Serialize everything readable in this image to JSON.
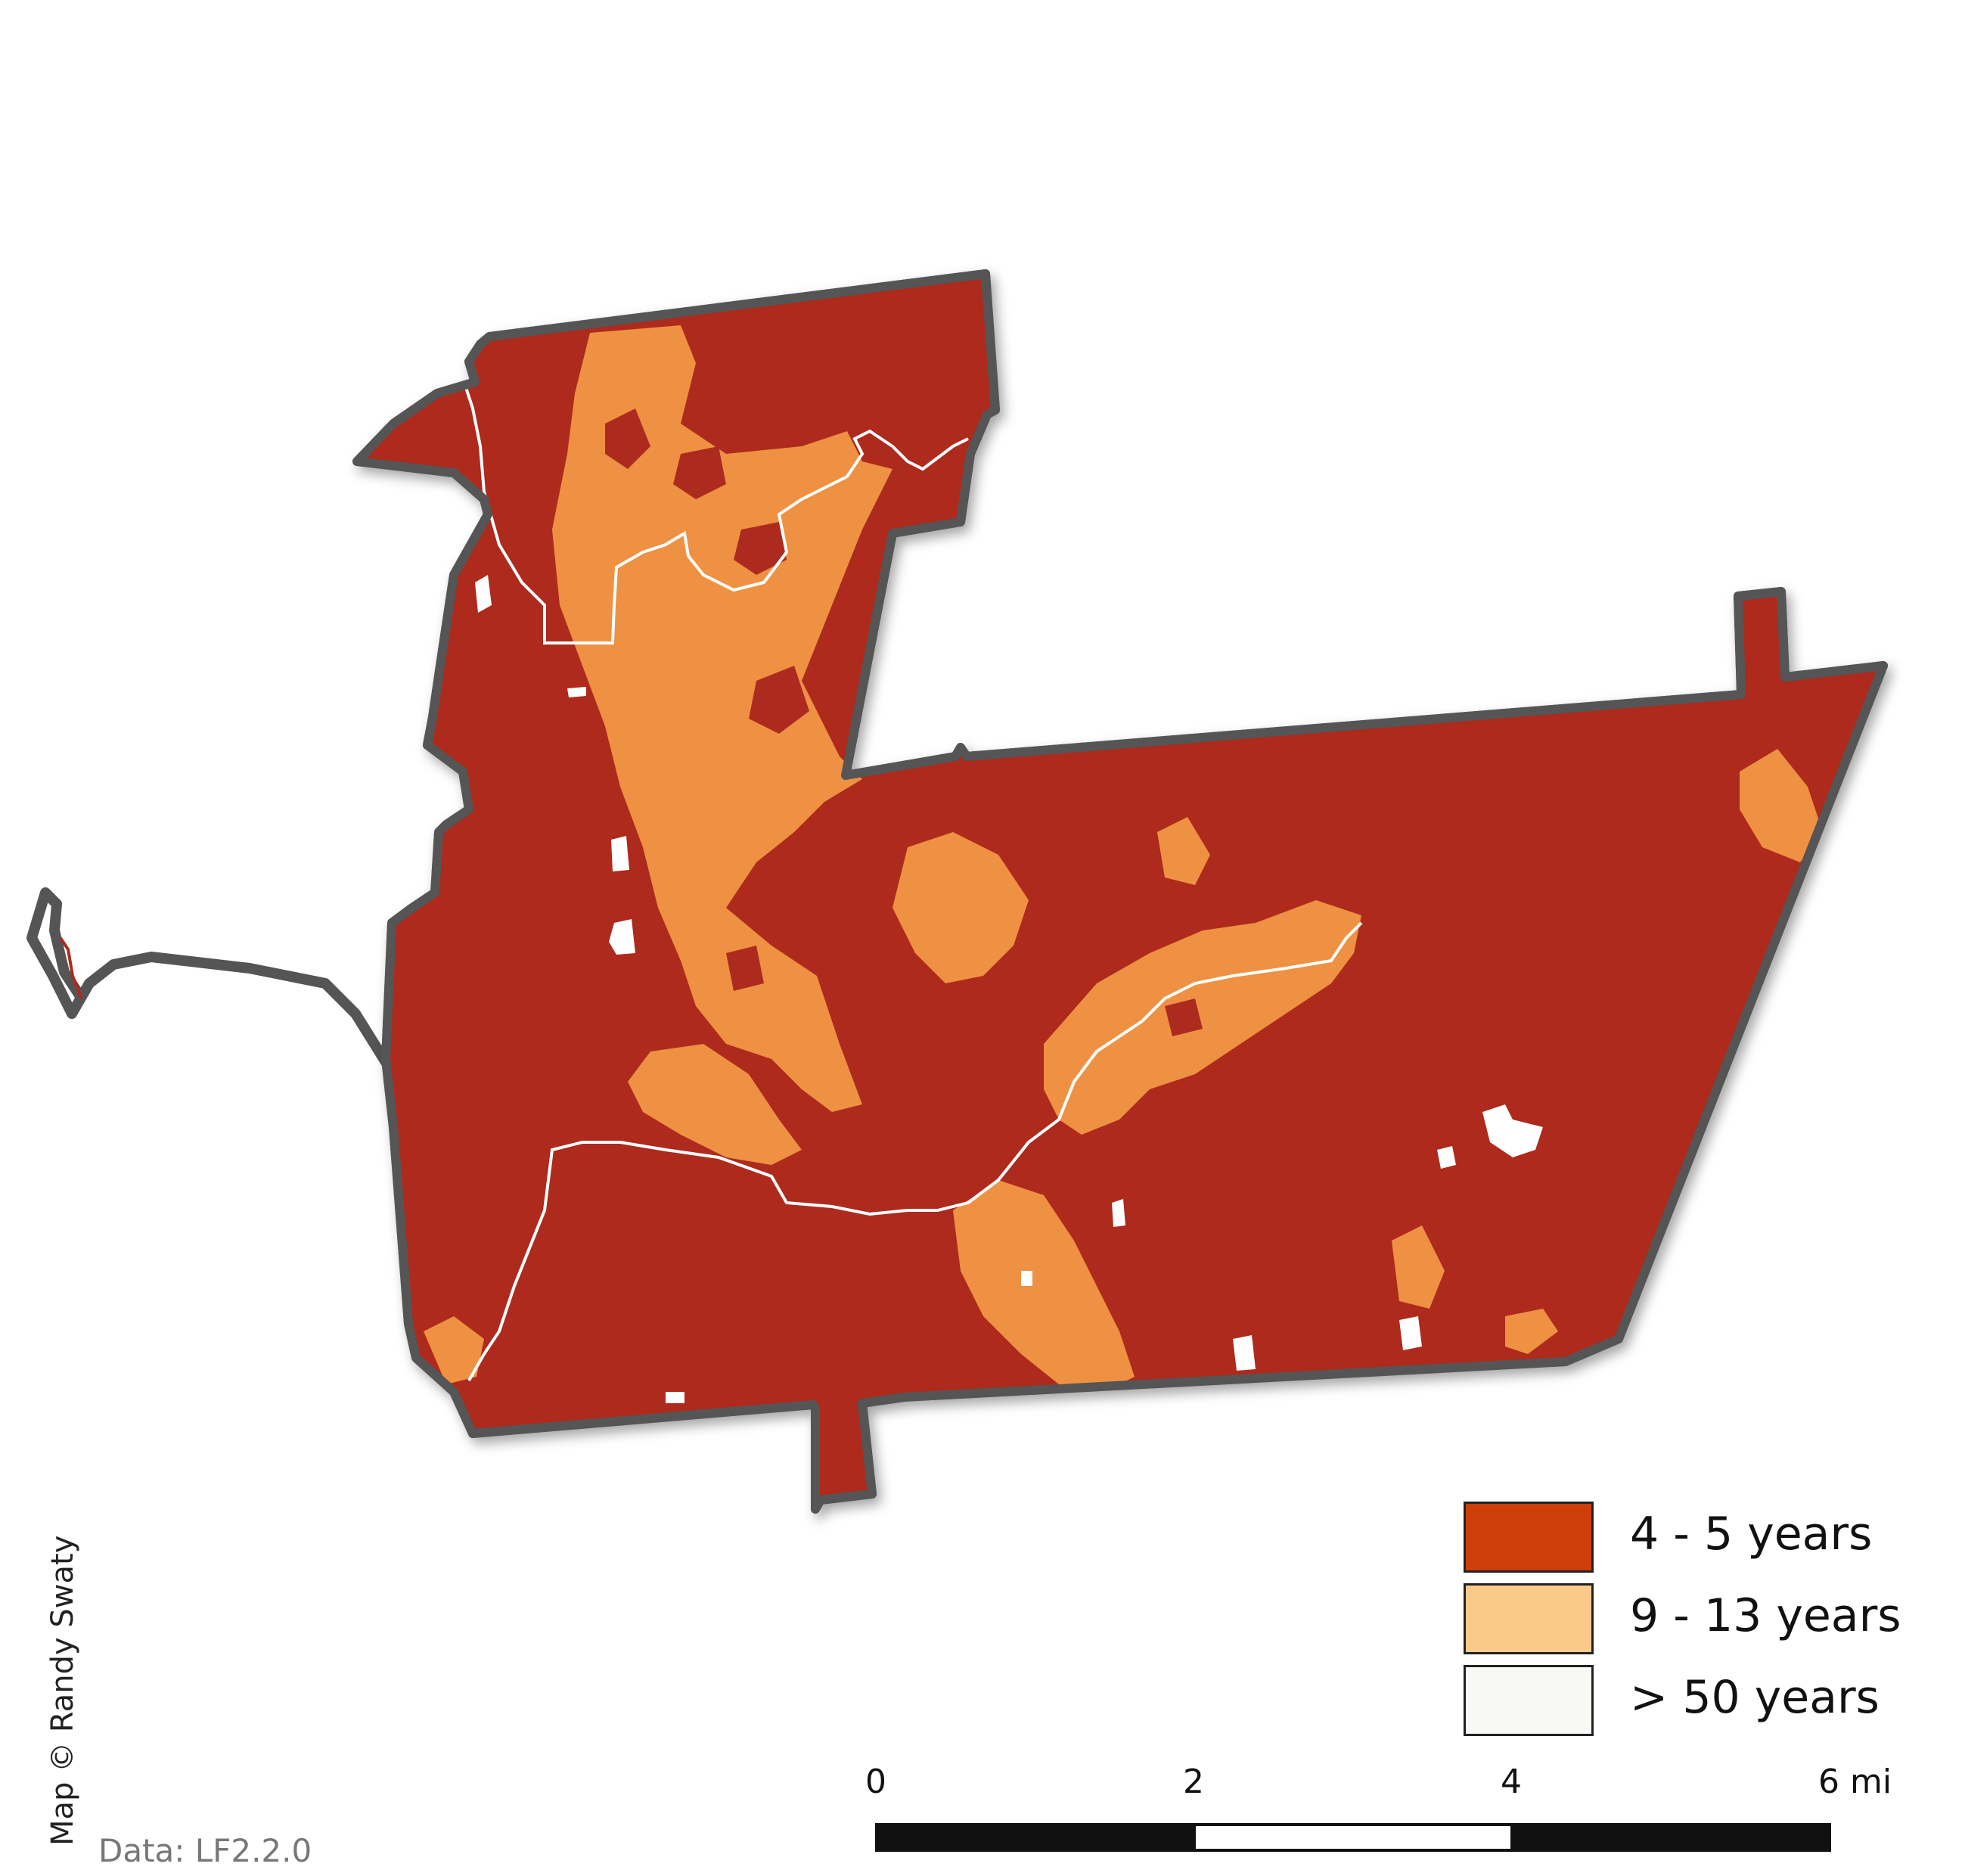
{
  "colors": {
    "class_4_5": "#ad2b1e",
    "class_9_13": "#ef9143",
    "class_gt_50": "#ffffff",
    "legend_4_5": "#cf3d08",
    "legend_9_13": "#fbc98a",
    "legend_gt_50": "#f8f8f4",
    "boundary": "#555555",
    "stream": "#ffffff"
  },
  "legend": {
    "items": [
      {
        "label": "4 - 5 years"
      },
      {
        "label": "9 - 13 years"
      },
      {
        "label": "> 50 years"
      }
    ]
  },
  "scale_bar": {
    "ticks": [
      "0",
      "2",
      "4"
    ],
    "end_label": "6 mi"
  },
  "credit": "Map © Randy Swaty",
  "data_source": "Data: LF2.2.0"
}
